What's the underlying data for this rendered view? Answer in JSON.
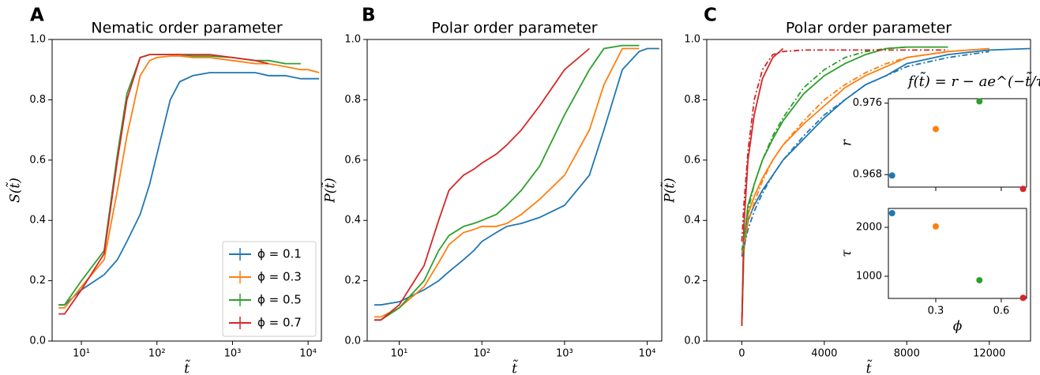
{
  "chart_data": [
    {
      "type": "line",
      "panel_label": "A",
      "title": "Nematic order parameter",
      "xlabel": "t̃",
      "ylabel": "S(t̃)",
      "xscale": "log",
      "xlim": [
        4.1,
        15000
      ],
      "ylim": [
        0,
        1
      ],
      "xticks": [
        {
          "value": 10,
          "label": "10¹"
        },
        {
          "value": 100,
          "label": "10²"
        },
        {
          "value": 1000,
          "label": "10³"
        },
        {
          "value": 10000,
          "label": "10⁴"
        }
      ],
      "yticks": [
        {
          "value": 0,
          "label": "0.0"
        },
        0.2,
        0.4,
        0.6,
        0.8,
        {
          "value": 1,
          "label": "1.0"
        }
      ],
      "legend": "lower right",
      "x": [
        5,
        6,
        10,
        20,
        30,
        40,
        60,
        80,
        100,
        150,
        200,
        300,
        500,
        1000,
        2000,
        3000,
        5000,
        8000,
        10000,
        14000
      ],
      "series": [
        {
          "name": "ϕ = 0.1",
          "color": "#1f77b4",
          "values": [
            0.12,
            0.12,
            0.17,
            0.22,
            0.27,
            0.33,
            0.42,
            0.52,
            0.62,
            0.8,
            0.86,
            0.88,
            0.89,
            0.89,
            0.89,
            0.88,
            0.88,
            0.87,
            0.87,
            0.87
          ]
        },
        {
          "name": "ϕ = 0.3",
          "color": "#ff7f0e",
          "values": [
            0.11,
            0.11,
            0.18,
            0.27,
            0.5,
            0.68,
            0.88,
            0.93,
            0.94,
            0.945,
            0.945,
            0.94,
            0.94,
            0.93,
            0.92,
            0.92,
            0.91,
            0.9,
            0.9,
            0.89
          ]
        },
        {
          "name": "ϕ = 0.5",
          "color": "#2ca02c",
          "values": [
            0.12,
            0.12,
            0.2,
            0.3,
            0.62,
            0.82,
            0.94,
            0.95,
            0.95,
            0.95,
            0.95,
            0.945,
            0.945,
            0.94,
            0.93,
            0.93,
            0.92,
            0.92,
            null,
            null
          ]
        },
        {
          "name": "ϕ = 0.7",
          "color": "#d62728",
          "values": [
            0.09,
            0.09,
            0.17,
            0.29,
            0.6,
            0.8,
            0.94,
            0.95,
            0.95,
            0.95,
            0.95,
            0.95,
            0.95,
            0.94,
            0.93,
            0.92,
            null,
            null,
            null,
            null
          ]
        }
      ]
    },
    {
      "type": "line",
      "panel_label": "B",
      "title": "Polar order parameter",
      "xlabel": "t̃",
      "ylabel": "P(t̃)",
      "xscale": "log",
      "xlim": [
        4.1,
        15000
      ],
      "ylim": [
        0,
        1
      ],
      "xticks": [
        {
          "value": 10,
          "label": "10¹"
        },
        {
          "value": 100,
          "label": "10²"
        },
        {
          "value": 1000,
          "label": "10³"
        },
        {
          "value": 10000,
          "label": "10⁴"
        }
      ],
      "yticks": [
        {
          "value": 0,
          "label": "0.0"
        },
        0.2,
        0.4,
        0.6,
        0.8,
        {
          "value": 1,
          "label": "1.0"
        }
      ],
      "x": [
        5,
        6,
        10,
        20,
        30,
        40,
        60,
        80,
        100,
        150,
        200,
        300,
        500,
        1000,
        2000,
        3000,
        5000,
        8000,
        10000,
        14000
      ],
      "series": [
        {
          "color": "#1f77b4",
          "values": [
            0.12,
            0.12,
            0.13,
            0.17,
            0.2,
            0.23,
            0.27,
            0.3,
            0.33,
            0.36,
            0.38,
            0.39,
            0.41,
            0.45,
            0.55,
            0.7,
            0.9,
            0.96,
            0.97,
            0.97
          ]
        },
        {
          "color": "#ff7f0e",
          "values": [
            0.08,
            0.08,
            0.11,
            0.18,
            0.26,
            0.32,
            0.36,
            0.37,
            0.38,
            0.38,
            0.39,
            0.42,
            0.47,
            0.55,
            0.7,
            0.85,
            0.97,
            0.97,
            null,
            null
          ]
        },
        {
          "color": "#2ca02c",
          "values": [
            0.07,
            0.07,
            0.11,
            0.2,
            0.3,
            0.35,
            0.38,
            0.39,
            0.4,
            0.42,
            0.45,
            0.5,
            0.58,
            0.75,
            0.9,
            0.97,
            0.98,
            0.98,
            null,
            null
          ]
        },
        {
          "color": "#d62728",
          "values": [
            0.07,
            0.07,
            0.12,
            0.25,
            0.4,
            0.5,
            0.55,
            0.57,
            0.59,
            0.62,
            0.65,
            0.7,
            0.78,
            0.9,
            0.97,
            null,
            null,
            null,
            null,
            null
          ]
        }
      ]
    },
    {
      "type": "line",
      "panel_label": "C",
      "title": "Polar order parameter",
      "xlabel": "t̃",
      "ylabel": "P(t̃)",
      "annotation": "f(t̃) = r − ae^(−t̃/τ)",
      "xlim": [
        -1700,
        14000
      ],
      "ylim": [
        0,
        1
      ],
      "xticks": [
        0,
        4000,
        8000,
        12000
      ],
      "yticks": [
        {
          "value": 0,
          "label": "0.0"
        },
        0.2,
        0.4,
        0.6,
        0.8,
        {
          "value": 1,
          "label": "1.0"
        }
      ],
      "x": [
        0,
        100,
        300,
        600,
        1000,
        1500,
        2000,
        3000,
        4000,
        5000,
        6000,
        7000,
        8000,
        10000,
        12000,
        14000
      ],
      "series": [
        {
          "color": "#1f77b4",
          "values": [
            0.05,
            0.3,
            0.4,
            0.45,
            0.5,
            0.55,
            0.6,
            0.67,
            0.74,
            0.8,
            0.85,
            0.88,
            0.92,
            0.95,
            0.965,
            0.97
          ]
        },
        {
          "color": "#ff7f0e",
          "values": [
            0.05,
            0.3,
            0.42,
            0.48,
            0.54,
            0.6,
            0.65,
            0.72,
            0.78,
            0.84,
            0.88,
            0.91,
            0.94,
            0.96,
            0.97,
            null
          ]
        },
        {
          "color": "#2ca02c",
          "values": [
            0.05,
            0.33,
            0.45,
            0.52,
            0.6,
            0.67,
            0.73,
            0.82,
            0.88,
            0.92,
            0.95,
            0.97,
            0.975,
            0.975,
            null,
            null
          ]
        },
        {
          "color": "#d62728",
          "values": [
            0.05,
            0.38,
            0.6,
            0.75,
            0.87,
            0.94,
            0.97,
            null,
            null,
            null,
            null,
            null,
            null,
            null,
            null,
            null
          ]
        },
        {
          "color": "#1f77b4",
          "linestyle": "dashdot",
          "values": [
            0.28,
            0.31,
            0.37,
            0.43,
            0.49,
            0.55,
            0.6,
            0.68,
            0.75,
            0.8,
            0.85,
            0.88,
            0.91,
            0.94,
            0.96,
            null
          ]
        },
        {
          "color": "#ff7f0e",
          "linestyle": "dashdot",
          "values": [
            0.29,
            0.32,
            0.39,
            0.46,
            0.53,
            0.6,
            0.65,
            0.73,
            0.8,
            0.85,
            0.89,
            0.92,
            0.94,
            0.96,
            null,
            null
          ]
        },
        {
          "color": "#2ca02c",
          "linestyle": "dashdot",
          "values": [
            0.3,
            0.34,
            0.43,
            0.52,
            0.6,
            0.68,
            0.74,
            0.84,
            0.9,
            0.94,
            0.96,
            0.97,
            0.975,
            null,
            null,
            null
          ]
        },
        {
          "color": "#d62728",
          "linestyle": "dashdot",
          "values": [
            0.33,
            0.45,
            0.63,
            0.8,
            0.9,
            0.95,
            0.96,
            0.965,
            0.965,
            0.965,
            0.965,
            0.965,
            0.965,
            0.965,
            null,
            null
          ]
        }
      ]
    },
    {
      "type": "scatter",
      "ylabel": "r",
      "xlim": [
        0.083,
        0.716
      ],
      "ylim": [
        0.9666,
        0.9765
      ],
      "xticks": [
        0.3,
        0.6
      ],
      "yticks": [
        0.968,
        0.976
      ],
      "hide_xtick_labels": true,
      "x": [
        0.1,
        0.3,
        0.5,
        0.7
      ],
      "values": [
        0.9679,
        0.9731,
        0.9762,
        0.9664
      ],
      "colors": [
        "#1f77b4",
        "#ff7f0e",
        "#2ca02c",
        "#d62728"
      ]
    },
    {
      "type": "scatter",
      "ylabel": "τ",
      "xlabel": "ϕ",
      "xlim": [
        0.083,
        0.716
      ],
      "ylim": [
        548,
        2387
      ],
      "xticks": [
        0.3,
        0.6
      ],
      "yticks": [
        1000,
        2000
      ],
      "x": [
        0.1,
        0.3,
        0.5,
        0.7
      ],
      "values": [
        2290,
        2020,
        920,
        560
      ],
      "colors": [
        "#1f77b4",
        "#ff7f0e",
        "#2ca02c",
        "#d62728"
      ]
    }
  ]
}
